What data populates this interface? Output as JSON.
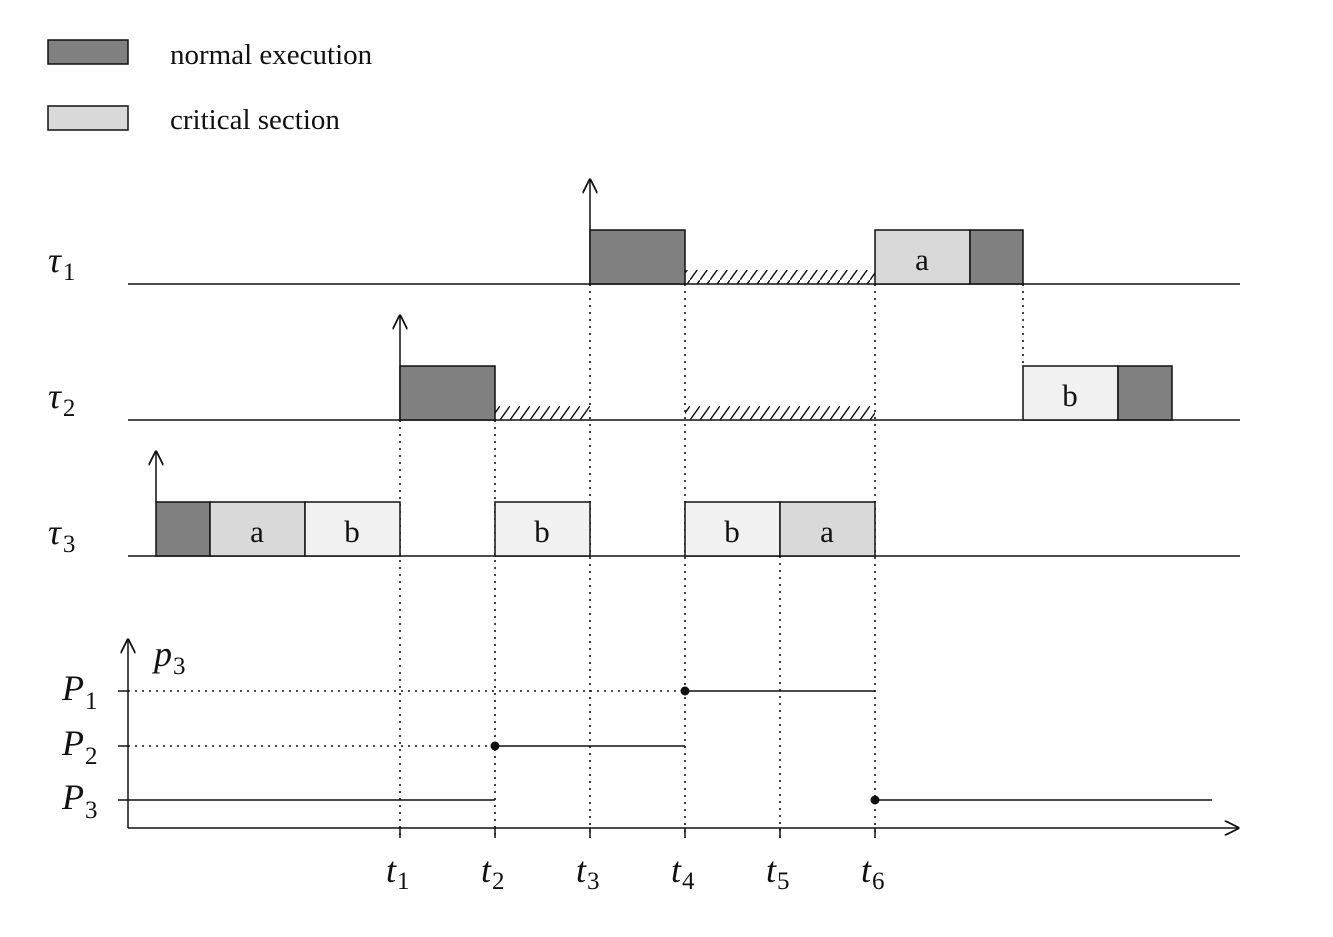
{
  "legend": {
    "normal_label": "normal execution",
    "critical_label": "critical section",
    "normal_color": "#808080",
    "critical_color": "#d9d9d9"
  },
  "tasks": [
    {
      "symbol": "τ",
      "sub": "1"
    },
    {
      "symbol": "τ",
      "sub": "2"
    },
    {
      "symbol": "τ",
      "sub": "3"
    }
  ],
  "blocks": {
    "tau1_a": "a",
    "tau2_b": "b",
    "tau3_a1": "a",
    "tau3_b1": "b",
    "tau3_b2": "b",
    "tau3_b3": "b",
    "tau3_a2": "a"
  },
  "priority_axis": {
    "label_sym": "p",
    "label_sub": "3",
    "levels": [
      {
        "sym": "P",
        "sub": "1"
      },
      {
        "sym": "P",
        "sub": "2"
      },
      {
        "sym": "P",
        "sub": "3"
      }
    ]
  },
  "time_ticks": [
    {
      "sym": "t",
      "sub": "1"
    },
    {
      "sym": "t",
      "sub": "2"
    },
    {
      "sym": "t",
      "sub": "3"
    },
    {
      "sym": "t",
      "sub": "4"
    },
    {
      "sym": "t",
      "sub": "5"
    },
    {
      "sym": "t",
      "sub": "6"
    }
  ]
}
